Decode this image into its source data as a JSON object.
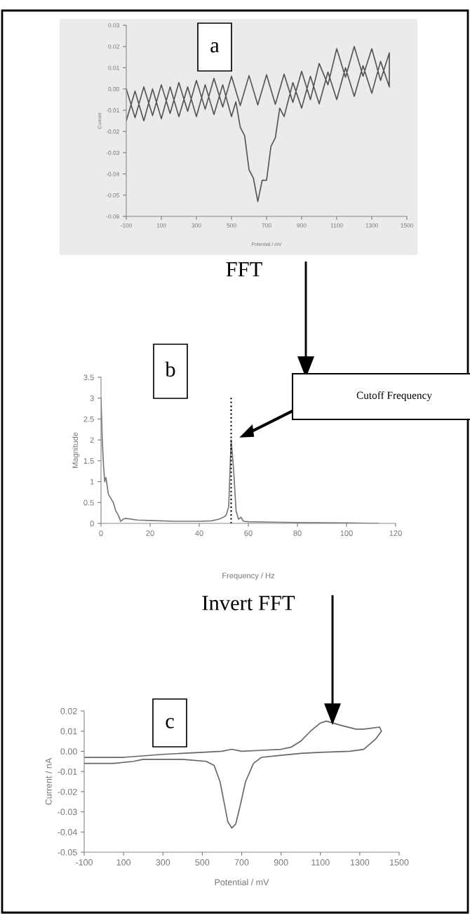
{
  "chart_data": [
    {
      "type": "line",
      "title": "a",
      "xlabel": "Potential / mV",
      "ylabel": "Current",
      "annotations": [
        "FFT"
      ],
      "xlim": [
        -100,
        1500
      ],
      "ylim": [
        -0.06,
        0.03
      ],
      "xticks": [
        {
          "value": -100,
          "label": "-100"
        },
        100,
        300,
        500,
        700,
        900,
        1100,
        1300,
        1500
      ],
      "yticks": [
        {
          "value": 0.03,
          "label": "0.03"
        },
        {
          "value": 0.02,
          "label": "0.02"
        },
        {
          "value": 0.01,
          "label": "0.01"
        },
        {
          "value": 0,
          "label": "0.00"
        },
        {
          "value": -0.01,
          "label": "-0.01"
        },
        {
          "value": -0.02,
          "label": "-0.02"
        },
        {
          "value": -0.03,
          "label": "-0.03"
        },
        {
          "value": -0.04,
          "label": "-0.04"
        },
        {
          "value": -0.05,
          "label": "-0.05"
        },
        {
          "value": -0.06,
          "label": "-0.06"
        }
      ],
      "grid": false,
      "legend": false,
      "series": [
        {
          "color": "#555555",
          "x": [
            -100,
            -50,
            0,
            50,
            100,
            150,
            200,
            250,
            300,
            350,
            400,
            450,
            500,
            550,
            600,
            650,
            700,
            750,
            800,
            850,
            900,
            950,
            1000,
            1050,
            1100,
            1150,
            1200,
            1250,
            1300,
            1350,
            1400,
            1400,
            1350,
            1300,
            1250,
            1200,
            1150,
            1100,
            1050,
            1000,
            950,
            900,
            850,
            800,
            775,
            750,
            725,
            700,
            675,
            650,
            625,
            600,
            575,
            550,
            525,
            500,
            450,
            400,
            350,
            300,
            250,
            200,
            150,
            100,
            50,
            0,
            -50,
            -100
          ],
          "values": [
            0.0,
            -0.0135,
            0.001,
            -0.0125,
            0.002,
            -0.0115,
            0.003,
            -0.0105,
            0.004,
            -0.0095,
            0.005,
            -0.0085,
            0.006,
            -0.0078,
            0.0063,
            -0.0075,
            0.0067,
            -0.0072,
            0.007,
            -0.0063,
            0.0083,
            -0.005,
            0.012,
            0.002,
            0.019,
            0.0055,
            0.02,
            0.006,
            0.019,
            0.004,
            0.017,
            0.001,
            0.013,
            -0.002,
            0.011,
            -0.0035,
            0.01,
            -0.005,
            0.008,
            -0.007,
            0.006,
            -0.009,
            0.003,
            -0.013,
            -0.009,
            -0.023,
            -0.027,
            -0.043,
            -0.043,
            -0.053,
            -0.042,
            -0.038,
            -0.022,
            -0.018,
            -0.006,
            -0.013,
            0.002,
            -0.012,
            0.002,
            -0.013,
            0.001,
            -0.013,
            0.001,
            -0.014,
            0.0,
            -0.015,
            -0.001,
            -0.015
          ]
        }
      ]
    },
    {
      "type": "line",
      "title": "b",
      "xlabel": "Frequency / Hz",
      "ylabel": "Magnitude",
      "annotations": [
        "Cutoff Frequency",
        "Invert FFT"
      ],
      "xlim": [
        0,
        120
      ],
      "ylim": [
        0,
        3.5
      ],
      "xticks": [
        0,
        20,
        40,
        60,
        80,
        100,
        120
      ],
      "yticks": [
        0,
        0.5,
        1,
        1.5,
        2,
        2.5,
        3,
        3.5
      ],
      "grid": false,
      "legend": false,
      "ref_lines": [
        {
          "axis": "x",
          "value": 53,
          "color": "#000000",
          "line_style": "dotted"
        }
      ],
      "series": [
        {
          "color": "#777777",
          "x": [
            0,
            0.5,
            1,
            1.5,
            2,
            3,
            4,
            5,
            6,
            7,
            8,
            9,
            10,
            15,
            20,
            30,
            40,
            45,
            48,
            50,
            51,
            52,
            53,
            54,
            55,
            56,
            57,
            58,
            60,
            70,
            80,
            100,
            113
          ],
          "values": [
            3.0,
            2.0,
            1.4,
            1.0,
            1.1,
            0.7,
            0.6,
            0.5,
            0.3,
            0.2,
            0.05,
            0.1,
            0.12,
            0.08,
            0.07,
            0.05,
            0.05,
            0.06,
            0.1,
            0.15,
            0.2,
            0.4,
            2.0,
            1.3,
            0.3,
            0.1,
            0.15,
            0.05,
            0.04,
            0.03,
            0.02,
            0.01,
            0.0
          ]
        }
      ]
    },
    {
      "type": "line",
      "title": "c",
      "xlabel": "Potential / mV",
      "ylabel": "Current / nA",
      "xlim": [
        -100,
        1500
      ],
      "ylim": [
        -0.05,
        0.02
      ],
      "xticks": [
        {
          "value": -100,
          "label": "-100"
        },
        100,
        300,
        500,
        700,
        900,
        1100,
        1300,
        1500
      ],
      "yticks": [
        {
          "value": 0.02,
          "label": "0.02"
        },
        {
          "value": 0.01,
          "label": "0.01"
        },
        {
          "value": 0,
          "label": "0.00"
        },
        {
          "value": -0.01,
          "label": "-0.01"
        },
        {
          "value": -0.02,
          "label": "-0.02"
        },
        {
          "value": -0.03,
          "label": "-0.03"
        },
        {
          "value": -0.04,
          "label": "-0.04"
        },
        {
          "value": -0.05,
          "label": "-0.05"
        }
      ],
      "grid": false,
      "legend": false,
      "series": [
        {
          "color": "#666666",
          "x": [
            -100,
            100,
            300,
            500,
            600,
            650,
            700,
            800,
            900,
            950,
            1000,
            1050,
            1100,
            1130,
            1200,
            1280,
            1320,
            1400,
            1410,
            1380,
            1320,
            1250,
            1100,
            1000,
            900,
            800,
            760,
            720,
            690,
            670,
            650,
            630,
            610,
            590,
            560,
            520,
            400,
            200,
            150,
            50,
            -100
          ],
          "values": [
            -0.003,
            -0.003,
            -0.0015,
            -0.0005,
            0.0,
            0.001,
            0.0,
            0.0005,
            0.001,
            0.002,
            0.005,
            0.01,
            0.014,
            0.015,
            0.013,
            0.011,
            0.011,
            0.012,
            0.01,
            0.006,
            0.001,
            0.0,
            -0.0005,
            -0.001,
            -0.002,
            -0.003,
            -0.006,
            -0.015,
            -0.028,
            -0.036,
            -0.038,
            -0.035,
            -0.025,
            -0.015,
            -0.007,
            -0.005,
            -0.004,
            -0.004,
            -0.005,
            -0.006,
            -0.006
          ]
        }
      ]
    }
  ]
}
